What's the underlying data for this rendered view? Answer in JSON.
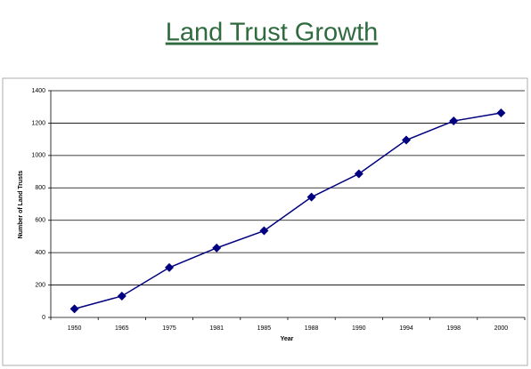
{
  "chart_data": {
    "type": "line",
    "title": "Land Trust Growth",
    "categories": [
      "1950",
      "1965",
      "1975",
      "1981",
      "1985",
      "1988",
      "1990",
      "1994",
      "1998",
      "2000"
    ],
    "values": [
      53,
      132,
      308,
      429,
      535,
      743,
      887,
      1095,
      1213,
      1263
    ],
    "color": "#000080",
    "xlabel": "Year",
    "ylabel": "Number of Land Trusts",
    "ylim": [
      0,
      1400
    ],
    "yticks": [
      0,
      200,
      400,
      600,
      800,
      1000,
      1200,
      1400
    ],
    "grid": true
  }
}
